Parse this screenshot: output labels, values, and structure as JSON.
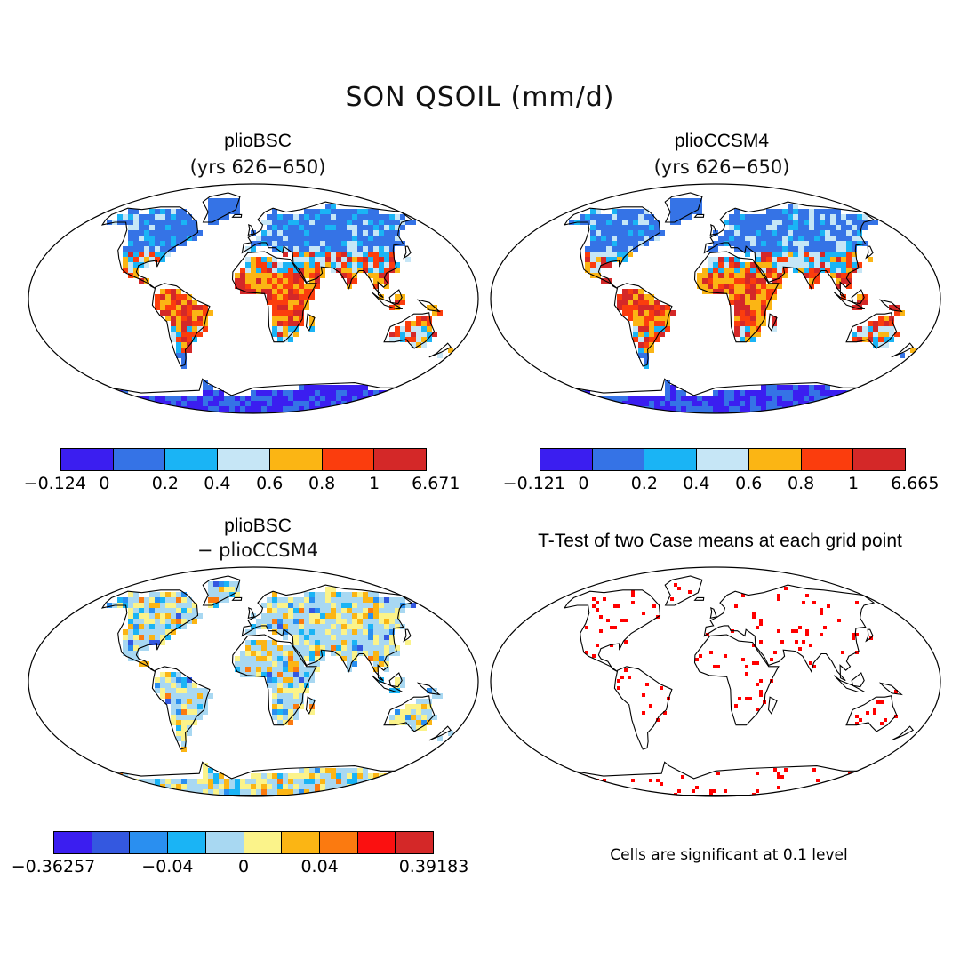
{
  "figure": {
    "title": "SON QSOIL (mm/d)"
  },
  "panels": [
    {
      "title": "plioBSC",
      "subtitle": "(yrs 626−650)",
      "colorbar": {
        "colors": [
          "#3b1ef0",
          "#3573e6",
          "#1ab4f5",
          "#c6e6f6",
          "#fbb514",
          "#fb3d0d",
          "#d42828"
        ],
        "tick_labels": [
          "−0.124",
          "0",
          "0.2",
          "0.4",
          "0.6",
          "0.8",
          "1",
          "6.671"
        ]
      }
    },
    {
      "title": "plioCCSM4",
      "subtitle": "(yrs 626−650)",
      "colorbar": {
        "colors": [
          "#3b1ef0",
          "#3573e6",
          "#1ab4f5",
          "#c6e6f6",
          "#fbb514",
          "#fb3d0d",
          "#d42828"
        ],
        "tick_labels": [
          "−0.121",
          "0",
          "0.2",
          "0.4",
          "0.6",
          "0.8",
          "1",
          "6.665"
        ]
      }
    },
    {
      "title": "plioBSC",
      "subtitle": "− plioCCSM4",
      "colorbar": {
        "colors": [
          "#3b1ef0",
          "#3458e0",
          "#2a8ff0",
          "#1ab4f5",
          "#a8d8f2",
          "#fbf38a",
          "#fbb514",
          "#fb7a10",
          "#fb1010",
          "#d42828"
        ],
        "tick_labels": [
          "−0.36257",
          "−0.04",
          "0",
          "0.04",
          "0.39183"
        ]
      }
    },
    {
      "title": "T-Test of two Case means at each grid point",
      "note": "Cells are significant at 0.1 level",
      "significant_color": "#ff0000"
    }
  ]
}
